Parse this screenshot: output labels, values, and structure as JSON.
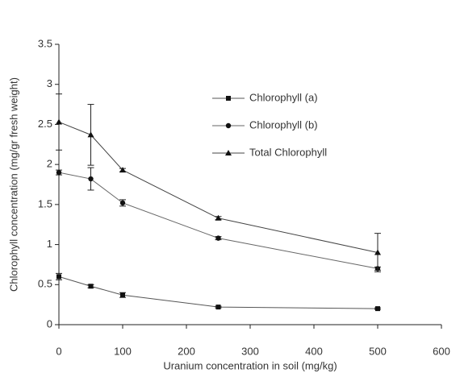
{
  "chart_data": {
    "type": "line",
    "xlabel": "Uranium concentration in soil (mg/kg)",
    "ylabel": "Chlorophyll concentration (mg/gr fresh weight)",
    "x": [
      0,
      50,
      100,
      250,
      500
    ],
    "xlim": [
      0,
      600
    ],
    "xticks": [
      0,
      100,
      200,
      300,
      400,
      500,
      600
    ],
    "ylim": [
      0,
      3.5
    ],
    "yticks": [
      0,
      0.5,
      1,
      1.5,
      2,
      2.5,
      3,
      3.5
    ],
    "grid": false,
    "legend": "upper right",
    "series": [
      {
        "name": "Chlorophyll (a)",
        "color": "#555555",
        "marker": "square",
        "values": [
          0.6,
          0.48,
          0.37,
          0.22,
          0.2
        ],
        "errors": [
          0.04,
          0.02,
          0.03,
          0.01,
          0.01
        ]
      },
      {
        "name": "Chlorophyll (b)",
        "color": "#666666",
        "marker": "circle",
        "values": [
          1.9,
          1.82,
          1.52,
          1.08,
          0.7
        ],
        "errors": [
          0.03,
          0.14,
          0.04,
          0.02,
          0.02
        ]
      },
      {
        "name": "Total Chlorophyll",
        "color": "#444444",
        "marker": "triangle",
        "values": [
          2.53,
          2.37,
          1.93,
          1.33,
          0.9
        ],
        "errors": [
          0.35,
          0.38,
          0.02,
          0.02,
          0.24
        ]
      }
    ]
  }
}
